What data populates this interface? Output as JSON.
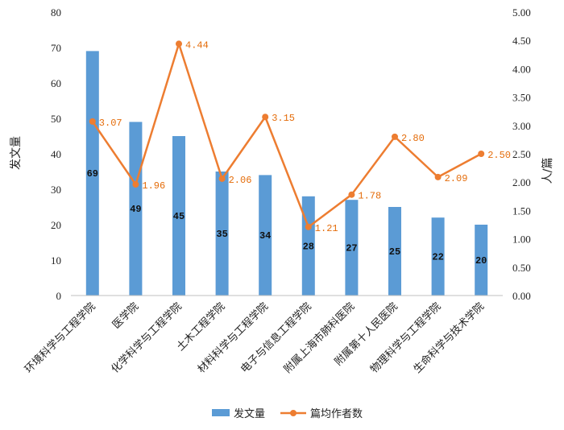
{
  "chart_data": {
    "type": "bar",
    "categories": [
      "环境科学与工程学院",
      "医学院",
      "化学科学与工程学院",
      "土木工程学院",
      "材料科学与工程学院",
      "电子与信息工程学院",
      "附属上海市肺科医院",
      "附属第十人民医院",
      "物理科学与工程学院",
      "生命科学与技术学院"
    ],
    "series": [
      {
        "name": "发文量",
        "type": "bar",
        "axis": "left",
        "color": "#5B9BD5",
        "values": [
          69,
          49,
          45,
          35,
          34,
          28,
          27,
          25,
          22,
          20
        ],
        "labels": [
          "69",
          "49",
          "45",
          "35",
          "34",
          "28",
          "27",
          "25",
          "22",
          "20"
        ]
      },
      {
        "name": "篇均作者数",
        "type": "line",
        "axis": "right",
        "color": "#ED7D31",
        "values": [
          3.07,
          1.96,
          4.44,
          2.06,
          3.15,
          1.21,
          1.78,
          2.8,
          2.09,
          2.5
        ],
        "labels": [
          "3.07",
          "1.96",
          "4.44",
          "2.06",
          "3.15",
          "1.21",
          "1.78",
          "2.80",
          "2.09",
          "2.50"
        ]
      }
    ],
    "ylabel": "发文量",
    "y2label": "人/篇",
    "ylim": [
      0,
      80
    ],
    "y2lim": [
      0,
      5
    ],
    "yticks": [
      "0",
      "10",
      "20",
      "30",
      "40",
      "50",
      "60",
      "70",
      "80"
    ],
    "y2ticks": [
      "0.00",
      "0.50",
      "1.00",
      "1.50",
      "2.00",
      "2.50",
      "3.00",
      "3.50",
      "4.00",
      "4.50",
      "5.00"
    ],
    "grid": false,
    "legend": "bottom"
  }
}
